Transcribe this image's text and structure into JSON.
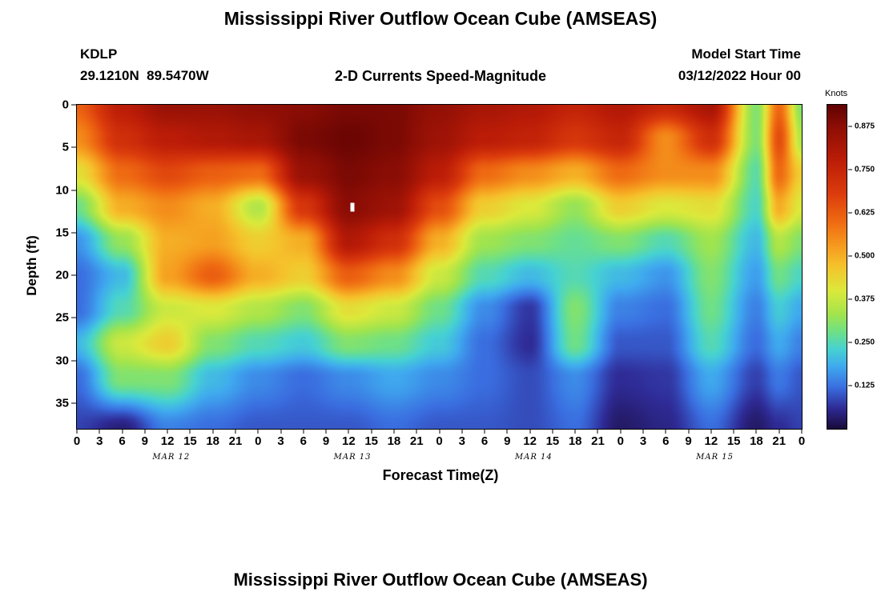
{
  "page": {
    "bottom_title": "Mississippi River Outflow Ocean Cube (AMSEAS)"
  },
  "chart_data": {
    "type": "heatmap",
    "title": "Mississippi River Outflow Ocean Cube (AMSEAS)",
    "station": "KDLP",
    "coordinates": "29.1210N  89.5470W",
    "subtitle": "2-D Currents Speed-Magnitude",
    "model_start_label": "Model Start Time",
    "model_start_value": "03/12/2022 Hour 00",
    "xlabel": "Forecast Time(Z)",
    "ylabel": "Depth (ft)",
    "colorbar_label": "Knots",
    "vmin": 0,
    "vmax": 0.9375,
    "colorbar_ticks": [
      0.875,
      0.75,
      0.625,
      0.5,
      0.375,
      0.25,
      0.125
    ],
    "x_range": [
      0,
      96
    ],
    "x_tick_step": 3,
    "x_tick_labels": [
      "0",
      "3",
      "6",
      "9",
      "12",
      "15",
      "18",
      "21",
      "0",
      "3",
      "6",
      "9",
      "12",
      "15",
      "18",
      "21",
      "0",
      "3",
      "6",
      "9",
      "12",
      "15",
      "18",
      "21",
      "0",
      "3",
      "6",
      "9",
      "12",
      "15",
      "18",
      "21",
      "0"
    ],
    "y_range": [
      0,
      38
    ],
    "y_ticks": [
      0,
      5,
      10,
      15,
      20,
      25,
      30,
      35
    ],
    "y_tick_labels": [
      "0",
      "5",
      "10",
      "15",
      "20",
      "25",
      "30",
      "35"
    ],
    "day_labels": [
      {
        "label": "MAR 12",
        "hour": 12.5
      },
      {
        "label": "MAR 13",
        "hour": 36.5
      },
      {
        "label": "MAR 14",
        "hour": 60.5
      },
      {
        "label": "MAR 15",
        "hour": 84.5
      }
    ],
    "marker": {
      "hour": 36.5,
      "depth": 12
    },
    "colormap": [
      [
        0.0,
        "#190a38"
      ],
      [
        0.06,
        "#2f2b96"
      ],
      [
        0.12,
        "#3a6ee0"
      ],
      [
        0.18,
        "#3fa9ef"
      ],
      [
        0.23,
        "#46d2d2"
      ],
      [
        0.28,
        "#6ee087"
      ],
      [
        0.33,
        "#a0e44e"
      ],
      [
        0.4,
        "#dce93b"
      ],
      [
        0.47,
        "#f5c32c"
      ],
      [
        0.53,
        "#f59a1e"
      ],
      [
        0.6,
        "#ef6a12"
      ],
      [
        0.68,
        "#dc3c0c"
      ],
      [
        0.78,
        "#bb1c07"
      ],
      [
        0.88,
        "#8a0d05"
      ],
      [
        0.9375,
        "#5e0202"
      ]
    ],
    "x_hours": [
      0,
      6,
      12,
      18,
      24,
      30,
      36,
      42,
      48,
      54,
      60,
      66,
      72,
      78,
      84,
      90,
      93,
      96
    ],
    "y_depths": [
      0,
      4,
      8,
      12,
      16,
      20,
      24,
      28,
      32,
      38
    ],
    "values": [
      [
        0.62,
        0.78,
        0.85,
        0.85,
        0.87,
        0.88,
        0.9,
        0.9,
        0.86,
        0.82,
        0.8,
        0.76,
        0.8,
        0.75,
        0.82,
        0.3,
        0.6,
        0.3
      ],
      [
        0.55,
        0.72,
        0.78,
        0.8,
        0.82,
        0.9,
        0.92,
        0.9,
        0.84,
        0.78,
        0.76,
        0.7,
        0.75,
        0.55,
        0.72,
        0.3,
        0.65,
        0.35
      ],
      [
        0.42,
        0.6,
        0.66,
        0.62,
        0.6,
        0.85,
        0.9,
        0.88,
        0.78,
        0.6,
        0.55,
        0.5,
        0.6,
        0.55,
        0.55,
        0.26,
        0.6,
        0.45
      ],
      [
        0.28,
        0.5,
        0.55,
        0.5,
        0.35,
        0.7,
        0.88,
        0.84,
        0.65,
        0.45,
        0.4,
        0.32,
        0.45,
        0.4,
        0.42,
        0.24,
        0.5,
        0.4
      ],
      [
        0.16,
        0.32,
        0.5,
        0.52,
        0.45,
        0.5,
        0.8,
        0.72,
        0.5,
        0.33,
        0.3,
        0.27,
        0.3,
        0.25,
        0.33,
        0.2,
        0.35,
        0.3
      ],
      [
        0.12,
        0.2,
        0.52,
        0.62,
        0.5,
        0.45,
        0.62,
        0.55,
        0.38,
        0.25,
        0.2,
        0.25,
        0.2,
        0.16,
        0.3,
        0.17,
        0.28,
        0.24
      ],
      [
        0.12,
        0.25,
        0.38,
        0.4,
        0.35,
        0.3,
        0.42,
        0.38,
        0.28,
        0.15,
        0.07,
        0.3,
        0.14,
        0.12,
        0.28,
        0.14,
        0.22,
        0.18
      ],
      [
        0.2,
        0.38,
        0.45,
        0.3,
        0.25,
        0.22,
        0.3,
        0.28,
        0.22,
        0.12,
        0.06,
        0.28,
        0.1,
        0.1,
        0.25,
        0.12,
        0.18,
        0.14
      ],
      [
        0.12,
        0.3,
        0.3,
        0.2,
        0.15,
        0.12,
        0.15,
        0.18,
        0.15,
        0.12,
        0.09,
        0.15,
        0.06,
        0.07,
        0.18,
        0.08,
        0.13,
        0.1
      ],
      [
        0.08,
        0.04,
        0.14,
        0.12,
        0.1,
        0.1,
        0.1,
        0.12,
        0.1,
        0.1,
        0.09,
        0.12,
        0.03,
        0.05,
        0.12,
        0.03,
        0.06,
        0.08
      ]
    ]
  }
}
